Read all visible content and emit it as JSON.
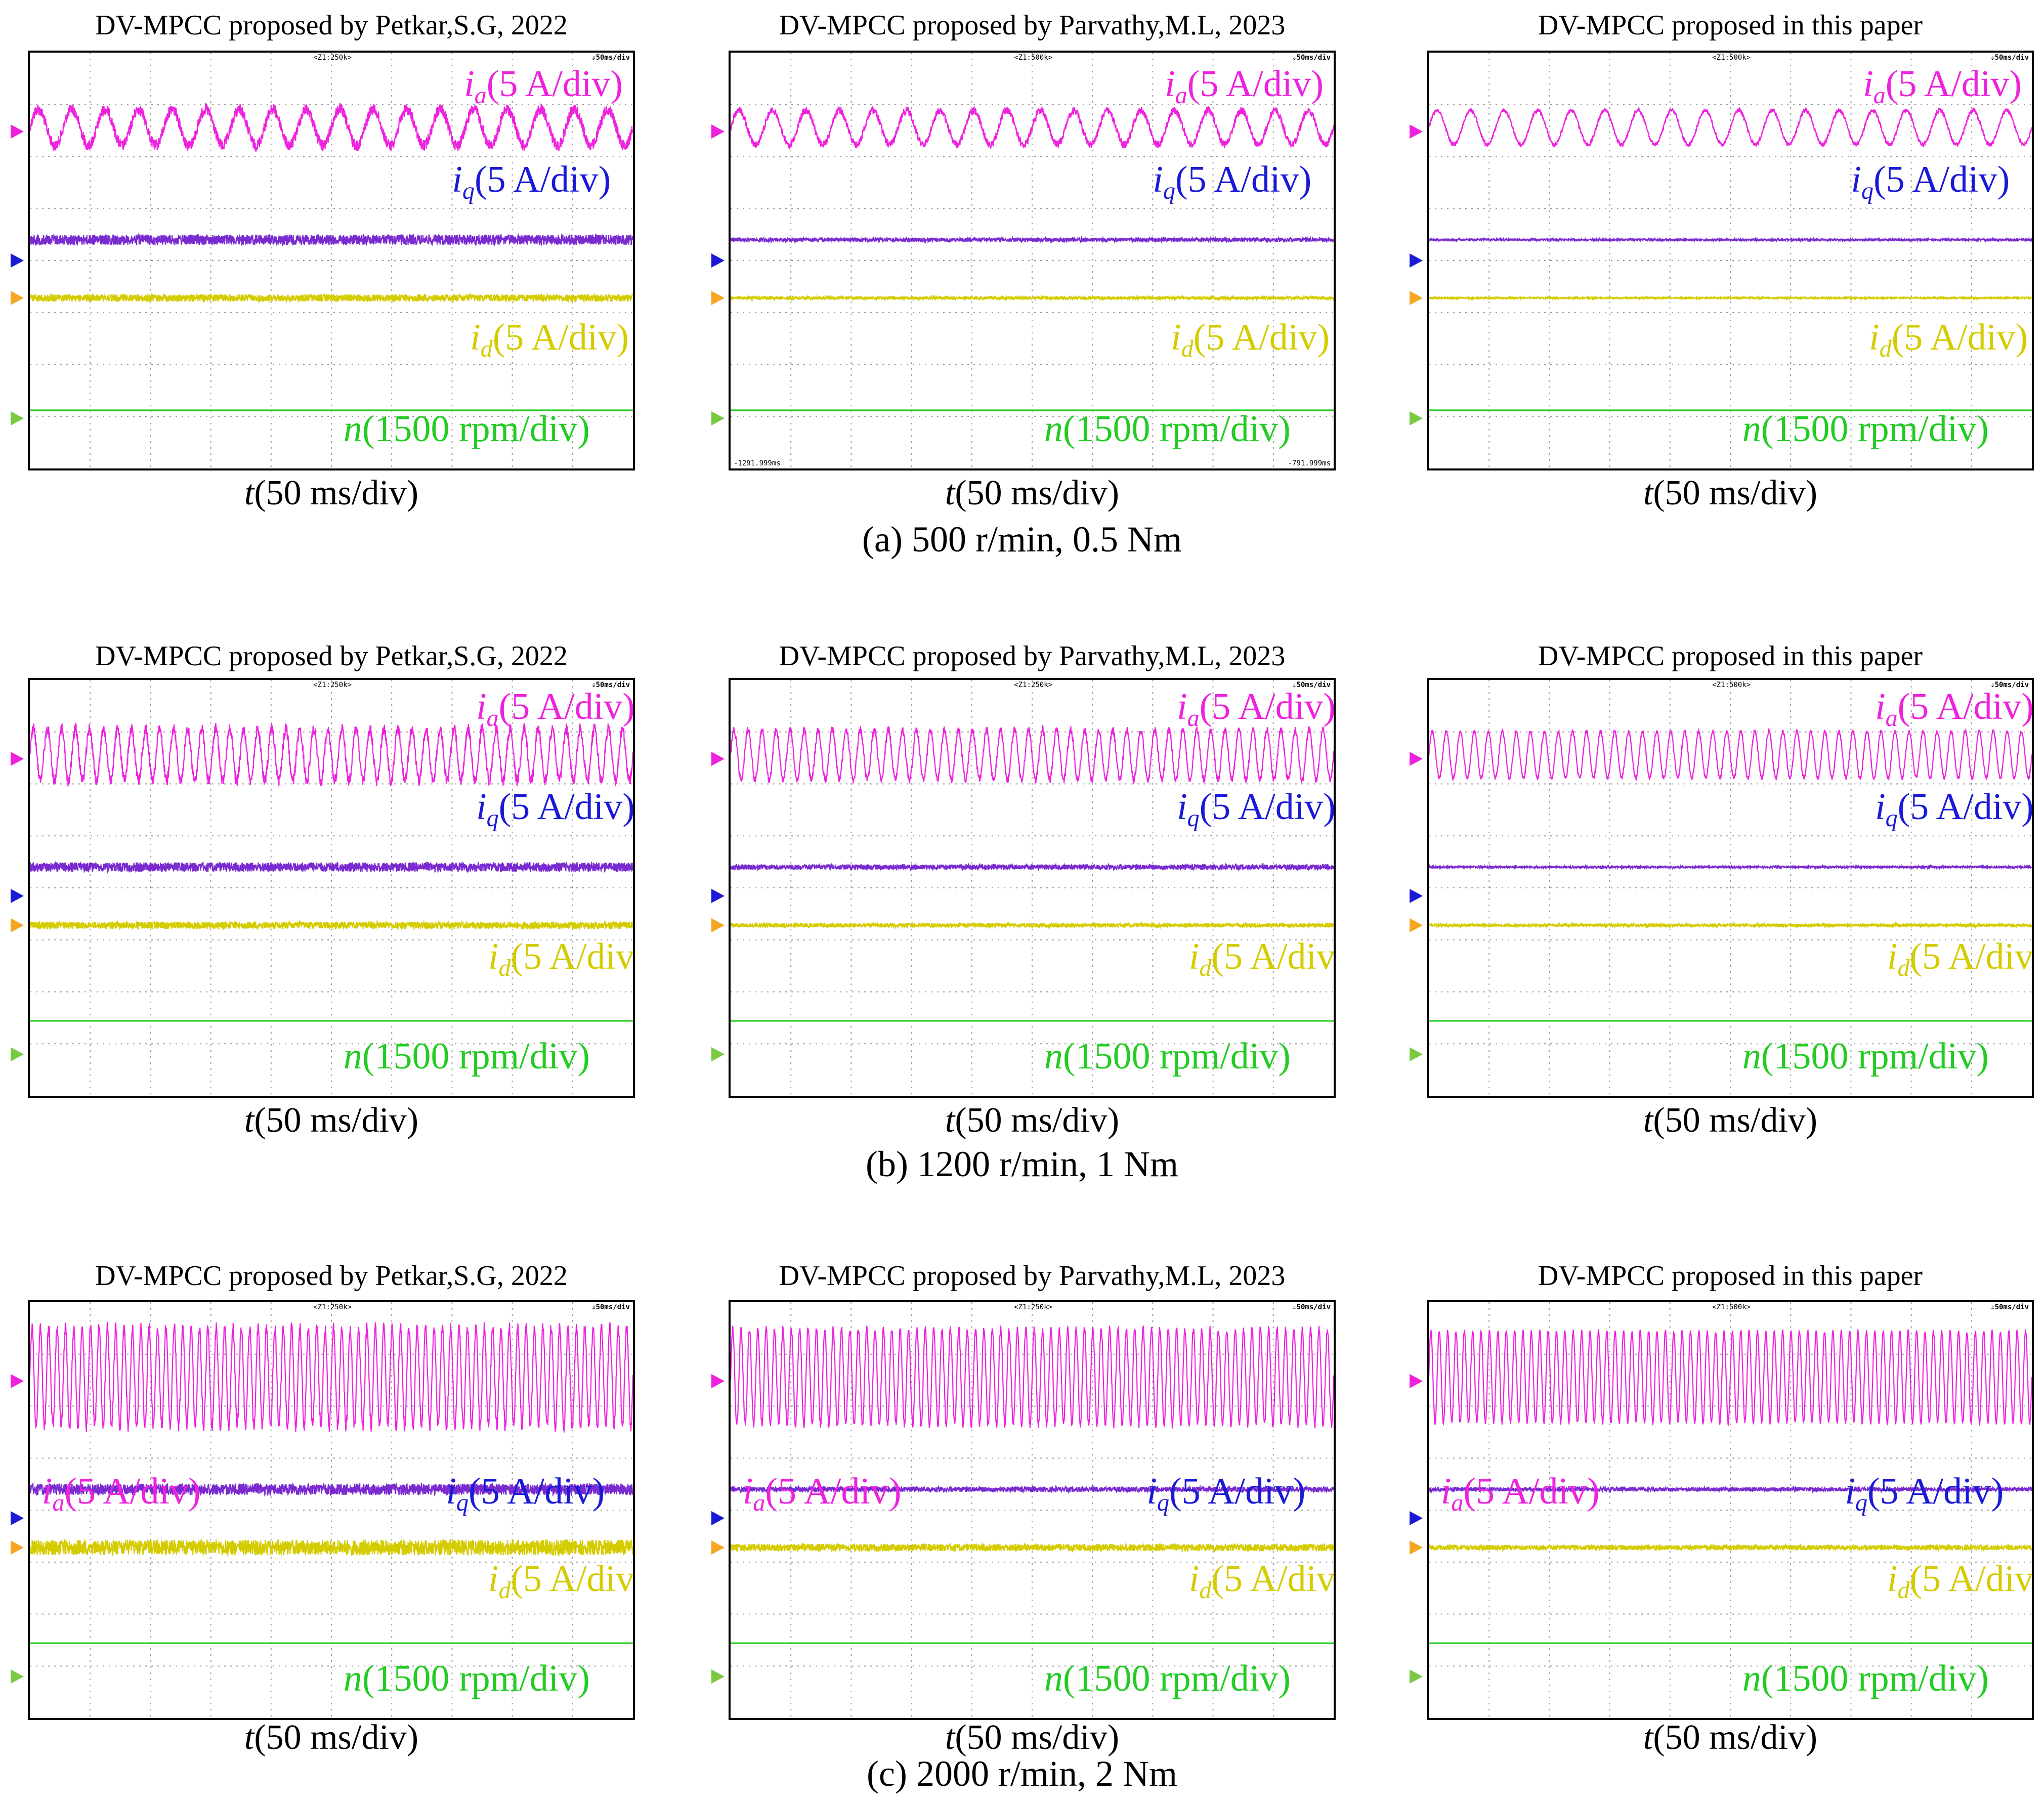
{
  "colors": {
    "ia": "#ee22dd",
    "iq": "#1a1ad6",
    "id": "#d4cc00",
    "n": "#22cc22",
    "iq_trace": "#7a2bd0",
    "id_marker": "#f5a623",
    "n_marker": "#7ac943"
  },
  "labels": {
    "ia_sym": "i",
    "ia_sub": "a",
    "iq_sym": "i",
    "iq_sub": "q",
    "id_sym": "i",
    "id_sub": "d",
    "current_unit": "(5 A/div)",
    "n_sym": "n",
    "n_unit": "(1500 rpm/div)",
    "t_sym": "t",
    "t_unit": "(50 ms/div)",
    "scope_scale": "50ms/div"
  },
  "rows": [
    {
      "caption": "(a) 500 r/min, 0.5 Nm",
      "panels": [
        {
          "title": "DV-MPCC proposed by Petkar,S.G, 2022",
          "zoom": "Z1:250k",
          "footer_left": "",
          "footer_right": ""
        },
        {
          "title": "DV-MPCC proposed by Parvathy,M.L, 2023",
          "zoom": "Z1:500k",
          "footer_left": "-1291.999ms",
          "footer_right": "-791.999ms"
        },
        {
          "title": "DV-MPCC proposed in this paper",
          "zoom": "Z1:500k",
          "footer_left": "",
          "footer_right": ""
        }
      ]
    },
    {
      "caption": "(b) 1200 r/min, 1 Nm",
      "panels": [
        {
          "title": "DV-MPCC proposed by Petkar,S.G, 2022",
          "zoom": "Z1:250k",
          "footer_left": "",
          "footer_right": ""
        },
        {
          "title": "DV-MPCC proposed by Parvathy,M.L, 2023",
          "zoom": "Z1:250k",
          "footer_left": "",
          "footer_right": ""
        },
        {
          "title": "DV-MPCC proposed in this paper",
          "zoom": "Z1:500k",
          "footer_left": "",
          "footer_right": ""
        }
      ]
    },
    {
      "caption": "(c) 2000 r/min, 2 Nm",
      "panels": [
        {
          "title": "DV-MPCC proposed by Petkar,S.G, 2022",
          "zoom": "Z1:250k",
          "footer_left": "",
          "footer_right": ""
        },
        {
          "title": "DV-MPCC proposed by Parvathy,M.L, 2023",
          "zoom": "Z1:250k",
          "footer_left": "",
          "footer_right": ""
        },
        {
          "title": "DV-MPCC proposed in this paper",
          "zoom": "Z1:500k",
          "footer_left": "",
          "footer_right": ""
        }
      ]
    }
  ],
  "chart_data": {
    "type": "line",
    "x_unit": "50 ms/div",
    "grid": true,
    "divisions": {
      "x": 10,
      "y": 8
    },
    "series_scales": {
      "ia": "5 A/div",
      "iq": "5 A/div",
      "id": "5 A/div",
      "n": "1500 rpm/div"
    },
    "conditions": [
      {
        "speed_rpm": 500,
        "torque_Nm": 0.5,
        "ia_cycles": 18,
        "ia_amp": [
          0.35,
          0.33,
          0.33
        ],
        "iq_ripple": [
          0.2,
          0.08,
          0.04
        ],
        "id_ripple": [
          0.14,
          0.06,
          0.03
        ]
      },
      {
        "speed_rpm": 1200,
        "torque_Nm": 1,
        "ia_cycles": 43,
        "ia_amp": [
          0.5,
          0.48,
          0.45
        ],
        "iq_ripple": [
          0.18,
          0.1,
          0.04
        ],
        "id_ripple": [
          0.14,
          0.08,
          0.06
        ]
      },
      {
        "speed_rpm": 2000,
        "torque_Nm": 2,
        "ia_cycles": 72,
        "ia_amp": [
          0.95,
          0.92,
          0.88
        ],
        "iq_ripple": [
          0.22,
          0.1,
          0.08
        ],
        "id_ripple": [
          0.3,
          0.14,
          0.1
        ]
      }
    ]
  }
}
